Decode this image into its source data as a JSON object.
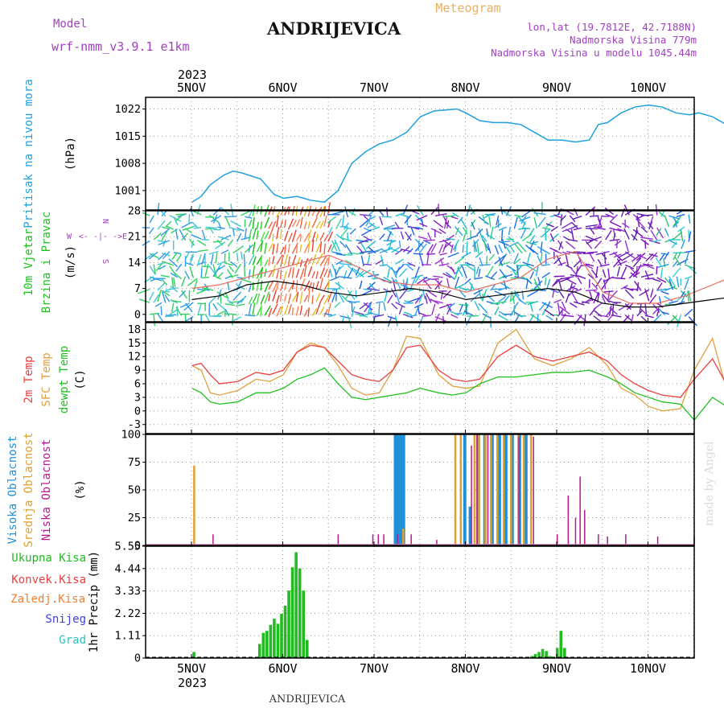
{
  "header": {
    "model_label": "Model",
    "model_name": "wrf-nmm_v3.9.1 e1km",
    "title": "ANDRIJEVICA",
    "meteogram": "Meteogram",
    "lonlat": "lon,lat (19.7812E, 42.7188N)",
    "elevation": "Nadmorska Visina 779m",
    "model_elevation": "Nadmorska Visina u modelu 1045.44m",
    "bottom_title": "ANDRIJEVICA",
    "credit": "made by Angel"
  },
  "colors": {
    "pressure": "#1fa0e0",
    "temp2m": "#e84040",
    "sfc": "#e0a040",
    "dewpt": "#20c020",
    "cloud_high": "#2090d8",
    "cloud_mid": "#e0a030",
    "cloud_low": "#b81890",
    "precip": "#22bb22",
    "magenta": "#a040c0"
  },
  "chart_data": [
    {
      "type": "line",
      "panel": "pressure",
      "ylabel_left": "Pritisak na nivou mora",
      "ylabel": "(hPa)",
      "yticks": [
        "1001",
        "1008",
        "1015",
        "1022"
      ],
      "ylim": [
        996,
        1025
      ],
      "x_top_year": "2023",
      "x_ticks": [
        "5NOV",
        "6NOV",
        "7NOV",
        "8NOV",
        "9NOV",
        "10NOV"
      ],
      "x_bottom_year": "2023",
      "grid": true,
      "series": [
        {
          "x": [
            0,
            0.1,
            0.2,
            0.35,
            0.45,
            0.55,
            0.75,
            0.9,
            1.0,
            1.15,
            1.3,
            1.45,
            1.6,
            1.75,
            1.9,
            2.05,
            2.2,
            2.35,
            2.5,
            2.65,
            2.8,
            2.9,
            3.0,
            3.15,
            3.3,
            3.45,
            3.6,
            3.75,
            3.9,
            4.05,
            4.2,
            4.35,
            4.45,
            4.55,
            4.7,
            4.85,
            5.0,
            5.15,
            5.3,
            5.45,
            5.55,
            5.7,
            5.85,
            6.0
          ],
          "values": [
            998,
            999.5,
            1002.5,
            1005,
            1006,
            1005.5,
            1004,
            1000,
            999,
            999.5,
            998.5,
            998,
            1001,
            1008,
            1011,
            1013,
            1014,
            1016,
            1020,
            1021.5,
            1021.8,
            1022,
            1021,
            1019,
            1018.5,
            1018.5,
            1018,
            1016,
            1014,
            1014,
            1013.5,
            1014,
            1018,
            1018.5,
            1021,
            1022.5,
            1023,
            1022.5,
            1021,
            1020.5,
            1021,
            1020,
            1018,
            1015
          ]
        }
      ]
    },
    {
      "type": "line",
      "panel": "wind",
      "ylabel_left": [
        "10m Vjetar",
        "Brzina i Pravac"
      ],
      "ylabel": "(m/s)",
      "direction_legend": [
        "W",
        "<- -|- ->",
        "E",
        "N",
        "S"
      ],
      "yticks": [
        "0",
        "7",
        "14",
        "21",
        "28"
      ],
      "ylim": [
        -2,
        28
      ],
      "series": [
        {
          "name": "wind speed",
          "x": [
            0,
            0.3,
            0.6,
            0.9,
            1.2,
            1.5,
            1.8,
            2.1,
            2.4,
            2.7,
            3.0,
            3.3,
            3.6,
            3.9,
            4.2,
            4.5,
            4.8,
            5.1,
            5.4,
            5.7,
            6.0
          ],
          "values": [
            4,
            5,
            8,
            9,
            8,
            6,
            5,
            6,
            7,
            6,
            4,
            5,
            6,
            7,
            6,
            3,
            2,
            2,
            3,
            4,
            5
          ]
        },
        {
          "name": "gust",
          "x": [
            0,
            0.3,
            0.6,
            0.9,
            1.2,
            1.5,
            1.8,
            2.1,
            2.4,
            2.7,
            3.0,
            3.3,
            3.6,
            3.9,
            4.2,
            4.5,
            4.8,
            5.1,
            5.4,
            5.7,
            6.0
          ],
          "values": [
            7,
            8,
            10,
            12,
            14,
            16,
            13,
            9,
            8,
            8,
            6,
            8,
            10,
            15,
            17,
            6,
            3,
            3,
            5,
            8,
            11
          ]
        }
      ]
    },
    {
      "type": "line",
      "panel": "temperature",
      "ylabel_left": [
        "2m Temp",
        "SFC Temp",
        "dewpt Temp"
      ],
      "ylabel": "(C)",
      "yticks": [
        "-3",
        "0",
        "3",
        "6",
        "9",
        "12",
        "15",
        "18"
      ],
      "ylim": [
        -5,
        19.5
      ],
      "series": [
        {
          "name": "2m Temp",
          "x": [
            0,
            0.1,
            0.2,
            0.3,
            0.5,
            0.7,
            0.85,
            1.0,
            1.15,
            1.3,
            1.45,
            1.6,
            1.75,
            1.9,
            2.05,
            2.2,
            2.35,
            2.5,
            2.7,
            2.85,
            3.0,
            3.15,
            3.35,
            3.55,
            3.75,
            3.95,
            4.15,
            4.35,
            4.55,
            4.7,
            4.85,
            5.0,
            5.15,
            5.35,
            5.5,
            5.7,
            5.85,
            6.0
          ],
          "values": [
            10,
            10.5,
            8,
            6,
            6.5,
            8.5,
            8,
            9,
            13,
            14.5,
            14,
            11,
            8,
            7,
            6.5,
            9,
            14,
            14.5,
            9,
            7,
            6.5,
            7,
            12,
            14.5,
            12,
            11,
            12,
            13,
            11,
            8,
            6,
            4.5,
            3.5,
            3,
            7,
            11.5,
            6,
            3.5
          ]
        },
        {
          "name": "SFC Temp",
          "x": [
            0,
            0.1,
            0.2,
            0.3,
            0.5,
            0.7,
            0.85,
            1.0,
            1.15,
            1.3,
            1.45,
            1.6,
            1.75,
            1.9,
            2.05,
            2.2,
            2.35,
            2.5,
            2.7,
            2.85,
            3.0,
            3.15,
            3.35,
            3.55,
            3.75,
            3.95,
            4.15,
            4.35,
            4.55,
            4.7,
            4.85,
            5.0,
            5.15,
            5.35,
            5.5,
            5.7,
            5.85,
            6.0
          ],
          "values": [
            10,
            9,
            4,
            3.5,
            4.5,
            7,
            6.5,
            8,
            13,
            15,
            14,
            10,
            5,
            3.5,
            4,
            9,
            16.5,
            16,
            8,
            5.5,
            5,
            5.5,
            15,
            18,
            11.5,
            10,
            11.5,
            14,
            10,
            5,
            3.5,
            1,
            0,
            0.5,
            9,
            16,
            5,
            1.5
          ]
        },
        {
          "name": "dewpt Temp",
          "x": [
            0,
            0.1,
            0.2,
            0.3,
            0.5,
            0.7,
            0.85,
            1.0,
            1.15,
            1.3,
            1.45,
            1.6,
            1.75,
            1.9,
            2.05,
            2.2,
            2.35,
            2.5,
            2.7,
            2.85,
            3.0,
            3.15,
            3.35,
            3.55,
            3.75,
            3.95,
            4.15,
            4.35,
            4.55,
            4.7,
            4.85,
            5.0,
            5.15,
            5.35,
            5.5,
            5.7,
            5.85,
            6.0
          ],
          "values": [
            5,
            4,
            2,
            1.5,
            2,
            4,
            4,
            5,
            7,
            8,
            9.5,
            6,
            3,
            2.5,
            3,
            3.5,
            4,
            5,
            4,
            3.5,
            4,
            6,
            7.5,
            7.5,
            8,
            8.5,
            8.5,
            9,
            7.5,
            6,
            4,
            3,
            2,
            1.5,
            -2,
            3,
            1,
            4.5
          ]
        }
      ]
    },
    {
      "type": "bar",
      "panel": "cloudiness",
      "ylabel_left": [
        "Visoka Oblacnost",
        "Srednja Oblacnost",
        "Niska Oblacnost"
      ],
      "ylabel": "(%)",
      "yticks": [
        "0",
        "25",
        "50",
        "75",
        "100"
      ],
      "ylim": [
        0,
        100
      ],
      "series": [
        {
          "name": "Visoka Oblacnost",
          "x": [
            2.24,
            2.27,
            2.3,
            2.33,
            3.0,
            3.06,
            3.15,
            3.22,
            3.3,
            3.38,
            3.45,
            3.52,
            3.6,
            3.67,
            5.95,
            5.98,
            6.0
          ],
          "values": [
            100,
            100,
            100,
            100,
            100,
            35,
            100,
            100,
            100,
            100,
            100,
            100,
            100,
            100,
            92,
            100,
            100
          ]
        },
        {
          "name": "Srednja Oblacnost",
          "x": [
            0.01,
            2.3,
            2.87,
            2.93,
            3.08,
            3.13,
            3.2,
            3.26,
            3.33,
            3.4,
            3.48,
            3.56,
            3.62,
            3.7
          ],
          "values": [
            72,
            15,
            100,
            100,
            100,
            100,
            100,
            100,
            100,
            100,
            100,
            100,
            100,
            100
          ]
        },
        {
          "name": "Niska Oblacnost",
          "x": [
            0.23,
            1.6,
            1.98,
            2.04,
            2.1,
            2.25,
            2.4,
            2.68,
            3.06,
            3.12,
            3.24,
            3.58,
            3.74,
            4.0,
            4.12,
            4.2,
            4.25,
            4.3,
            4.45,
            4.55,
            4.75,
            5.1,
            5.5
          ],
          "values": [
            10,
            10,
            10,
            10,
            10,
            10,
            10,
            5,
            90,
            100,
            100,
            98,
            98,
            10,
            45,
            25,
            62,
            32,
            10,
            8,
            10,
            8,
            8
          ]
        }
      ]
    },
    {
      "type": "bar",
      "panel": "precipitation",
      "ylabel_left": [
        "Ukupna Kisa",
        "Konvek.Kisa",
        "Zaledj.Kisa",
        "Snijeg",
        "Grad"
      ],
      "ylabel": "1hr Precip (mm)",
      "yticks": [
        "0",
        "1.11",
        "2.22",
        "3.33",
        "4.44",
        "5.55"
      ],
      "ylim": [
        0,
        5.55
      ],
      "series": [
        {
          "name": "Ukupna Kisa",
          "x": [
            0.02,
            0.74,
            0.78,
            0.82,
            0.86,
            0.9,
            0.94,
            0.98,
            1.02,
            1.06,
            1.1,
            1.14,
            1.18,
            1.22,
            1.26,
            1.3,
            3.72,
            3.76,
            3.8,
            3.84,
            3.88,
            3.92,
            3.96,
            4.0,
            4.04,
            4.08,
            4.12
          ],
          "values": [
            0.3,
            0.7,
            1.25,
            1.35,
            1.65,
            1.95,
            1.7,
            2.2,
            2.6,
            3.35,
            4.5,
            5.25,
            4.45,
            3.35,
            0.9,
            0.05,
            0.1,
            0.2,
            0.3,
            0.45,
            0.35,
            0.1,
            0.05,
            0.5,
            1.35,
            0.5,
            0.05
          ]
        }
      ]
    }
  ]
}
